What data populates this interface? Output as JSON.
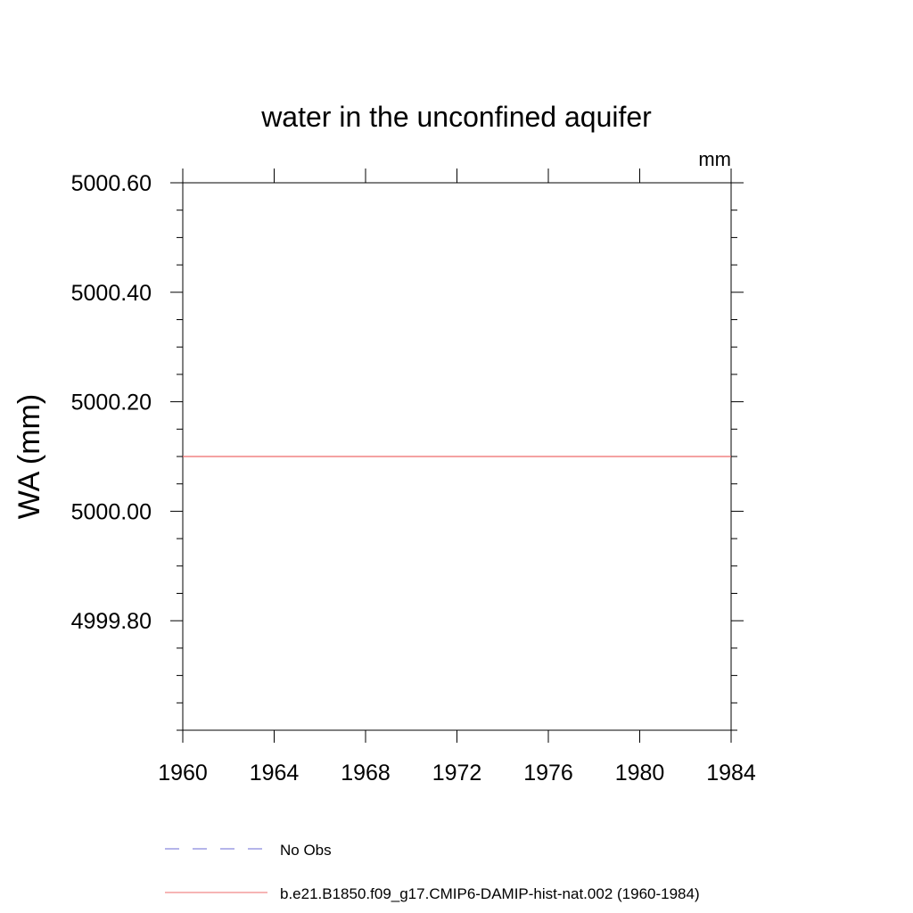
{
  "chart_data": {
    "type": "line",
    "title": "water in the unconfined aquifer",
    "units_label": "mm",
    "ylabel": "WA  (mm)",
    "xlabel": "",
    "xlim": [
      1960,
      1984
    ],
    "ylim": [
      4999.6,
      5000.6
    ],
    "x_ticks": [
      1960,
      1964,
      1968,
      1972,
      1976,
      1980,
      1984
    ],
    "x_tick_labels": [
      "1960",
      "1964",
      "1968",
      "1972",
      "1976",
      "1980",
      "1984"
    ],
    "y_ticks": [
      4999.8,
      5000.0,
      5000.2,
      5000.4,
      5000.6
    ],
    "y_tick_labels": [
      "4999.80",
      "5000.00",
      "5000.20",
      "5000.40",
      "5000.60"
    ],
    "x_minor_step": 1,
    "y_minor_step": 0.05,
    "grid": false,
    "legend_position": "bottom",
    "series": [
      {
        "name": "No Obs",
        "color": "#6b6bd6",
        "style": "dashed",
        "x": [],
        "y": []
      },
      {
        "name": "b.e21.B1850.f09_g17.CMIP6-DAMIP-hist-nat.002 (1960-1984)",
        "color": "#ee6b6b",
        "style": "solid",
        "x": [
          1960,
          1984
        ],
        "y": [
          5000.1,
          5000.1
        ]
      }
    ]
  }
}
